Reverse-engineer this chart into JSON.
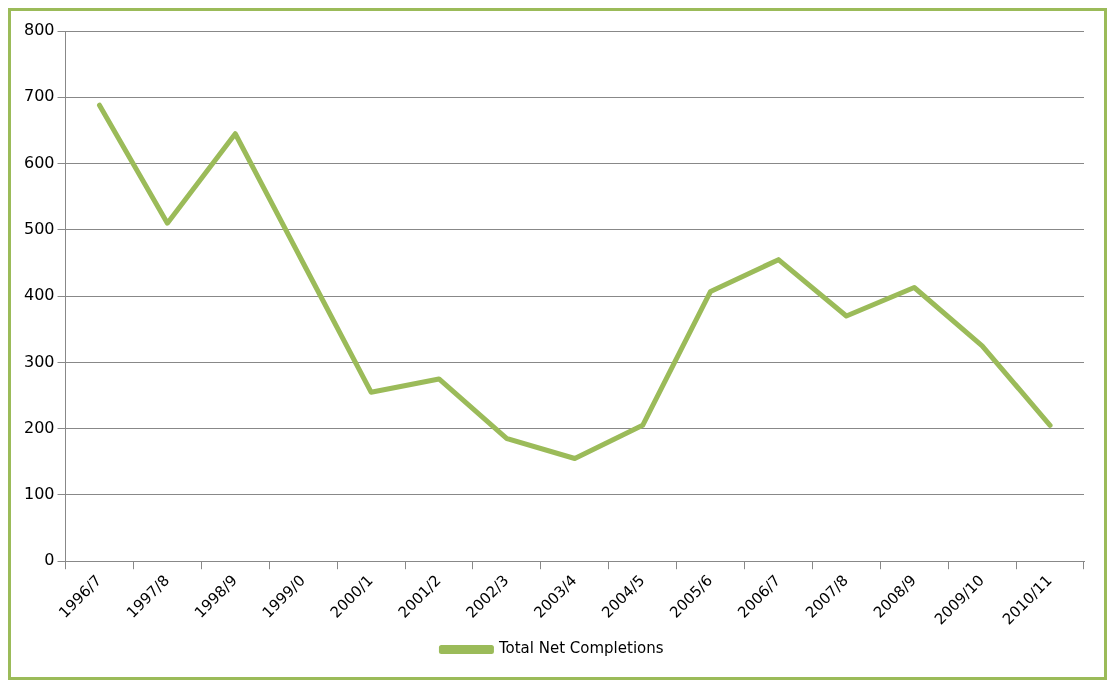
{
  "chart_data": {
    "type": "line",
    "categories": [
      "1996/7",
      "1997/8",
      "1998/9",
      "1999/0",
      "2000/1",
      "2001/2",
      "2002/3",
      "2003/4",
      "2004/5",
      "2005/6",
      "2006/7",
      "2007/8",
      "2008/9",
      "2009/10",
      "2010/11"
    ],
    "series": [
      {
        "name": "Total Net Completions",
        "color": "#9bbb59",
        "values": [
          688,
          510,
          645,
          450,
          255,
          275,
          185,
          155,
          205,
          407,
          455,
          370,
          413,
          325,
          205
        ]
      }
    ],
    "ylim": [
      0,
      800
    ],
    "yticks": [
      0,
      100,
      200,
      300,
      400,
      500,
      600,
      700,
      800
    ],
    "grid": "y",
    "legend": "bottom",
    "marker": "none",
    "line_style": "solid"
  }
}
